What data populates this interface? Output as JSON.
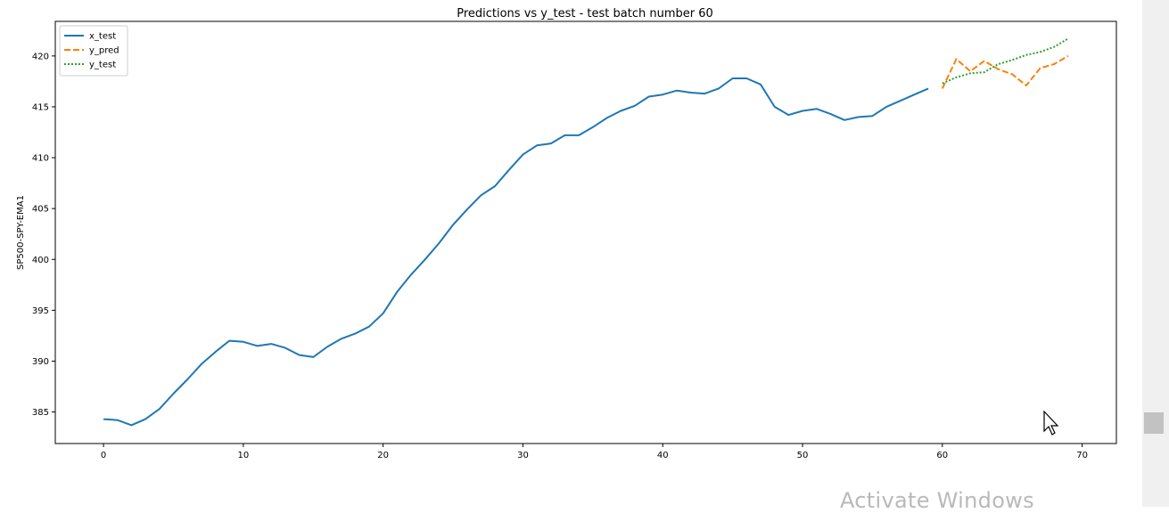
{
  "chart_data": {
    "type": "line",
    "title": "Predictions vs y_test - test batch number 60",
    "xlabel": "",
    "ylabel": "SP500-SPY-EMA1",
    "xlim": [
      -3.45,
      72.45
    ],
    "ylim": [
      381.9,
      423.4
    ],
    "xticks": [
      0,
      10,
      20,
      30,
      40,
      50,
      60,
      70
    ],
    "yticks": [
      385,
      390,
      395,
      400,
      405,
      410,
      415,
      420
    ],
    "grid": false,
    "legend_position": "top-left",
    "series": [
      {
        "name": "x_test",
        "style": "solid",
        "color": "#1f77b4",
        "x": [
          0,
          1,
          2,
          3,
          4,
          5,
          6,
          7,
          8,
          9,
          10,
          11,
          12,
          13,
          14,
          15,
          16,
          17,
          18,
          19,
          20,
          21,
          22,
          23,
          24,
          25,
          26,
          27,
          28,
          29,
          30,
          31,
          32,
          33,
          34,
          35,
          36,
          37,
          38,
          39,
          40,
          41,
          42,
          43,
          44,
          45,
          46,
          47,
          48,
          49,
          50,
          51,
          52,
          53,
          54,
          55,
          56,
          57,
          58,
          59
        ],
        "values": [
          384.3,
          384.2,
          383.7,
          384.3,
          385.3,
          386.8,
          388.2,
          389.7,
          390.9,
          392.0,
          391.9,
          391.5,
          391.7,
          391.3,
          390.6,
          390.4,
          391.4,
          392.2,
          392.7,
          393.4,
          394.7,
          396.8,
          398.5,
          400.0,
          401.6,
          403.4,
          404.9,
          406.3,
          407.2,
          408.8,
          410.3,
          411.2,
          411.4,
          412.2,
          412.2,
          413.0,
          413.9,
          414.6,
          415.1,
          416.0,
          416.2,
          416.6,
          416.4,
          416.3,
          416.8,
          417.8,
          417.8,
          417.2,
          415.0,
          414.2,
          414.6,
          414.8,
          414.3,
          413.7,
          414.0,
          414.1,
          415.0,
          415.6,
          416.2,
          416.8
        ]
      },
      {
        "name": "y_pred",
        "style": "dashed",
        "color": "#ff7f0e",
        "x": [
          60,
          61,
          62,
          63,
          64,
          65,
          66,
          67,
          68,
          69
        ],
        "values": [
          416.8,
          419.7,
          418.5,
          419.5,
          418.7,
          418.2,
          417.1,
          418.8,
          419.2,
          420.0
        ]
      },
      {
        "name": "y_test",
        "style": "dotted",
        "color": "#2ca02c",
        "x": [
          60,
          61,
          62,
          63,
          64,
          65,
          66,
          67,
          68,
          69
        ],
        "values": [
          417.3,
          417.9,
          418.3,
          418.4,
          419.2,
          419.6,
          420.1,
          420.4,
          420.9,
          421.7
        ]
      }
    ]
  },
  "watermark": {
    "text": "Activate Windows"
  }
}
